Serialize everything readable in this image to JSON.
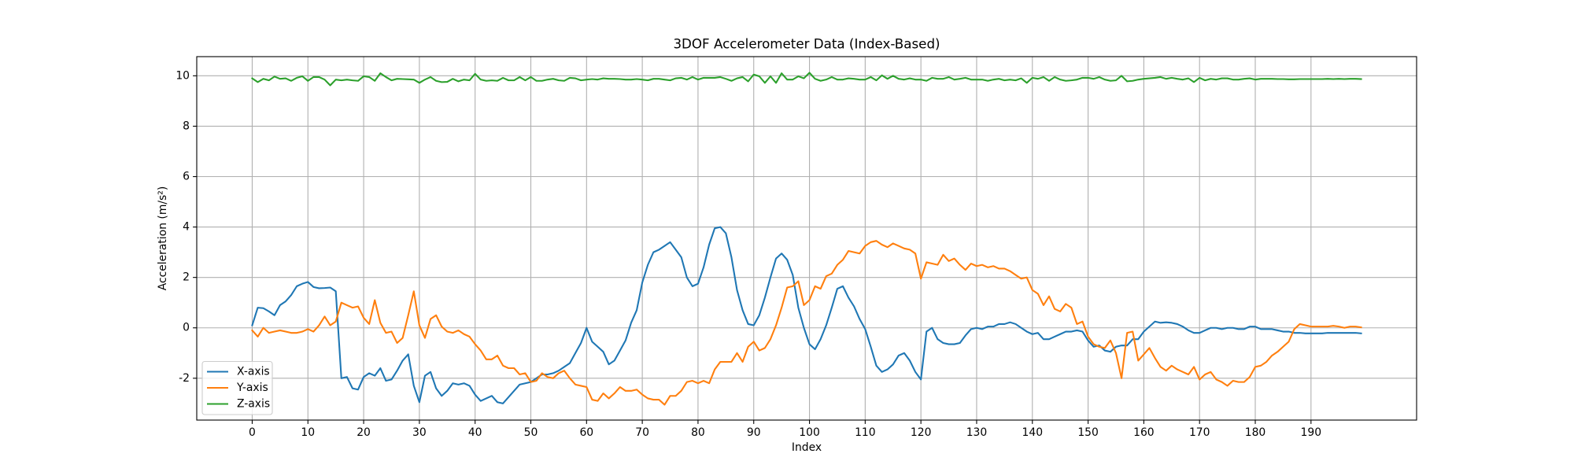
{
  "chart_data": {
    "type": "line",
    "title": "3DOF Accelerometer Data (Index-Based)",
    "x_label": "Index",
    "y_label": "Acceleration (m/s²)",
    "x": [
      0,
      1,
      2,
      3,
      4,
      5,
      6,
      7,
      8,
      9,
      10,
      11,
      12,
      13,
      14,
      15,
      16,
      17,
      18,
      19,
      20,
      21,
      22,
      23,
      24,
      25,
      26,
      27,
      28,
      29,
      30,
      31,
      32,
      33,
      34,
      35,
      36,
      37,
      38,
      39,
      40,
      41,
      42,
      43,
      44,
      45,
      46,
      47,
      48,
      49,
      50,
      51,
      52,
      53,
      54,
      55,
      56,
      57,
      58,
      59,
      60,
      61,
      62,
      63,
      64,
      65,
      66,
      67,
      68,
      69,
      70,
      71,
      72,
      73,
      74,
      75,
      76,
      77,
      78,
      79,
      80,
      81,
      82,
      83,
      84,
      85,
      86,
      87,
      88,
      89,
      90,
      91,
      92,
      93,
      94,
      95,
      96,
      97,
      98,
      99,
      100,
      101,
      102,
      103,
      104,
      105,
      106,
      107,
      108,
      109,
      110,
      111,
      112,
      113,
      114,
      115,
      116,
      117,
      118,
      119,
      120,
      121,
      122,
      123,
      124,
      125,
      126,
      127,
      128,
      129,
      130,
      131,
      132,
      133,
      134,
      135,
      136,
      137,
      138,
      139,
      140,
      141,
      142,
      143,
      144,
      145,
      146,
      147,
      148,
      149,
      150,
      151,
      152,
      153,
      154,
      155,
      156,
      157,
      158,
      159,
      160,
      161,
      162,
      163,
      164,
      165,
      166,
      167,
      168,
      169,
      170,
      171,
      172,
      173,
      174,
      175,
      176,
      177,
      178,
      179,
      180,
      181,
      182,
      183,
      184,
      185,
      186,
      187,
      188,
      189,
      190,
      191,
      192,
      193,
      194,
      195,
      196,
      197,
      198,
      199
    ],
    "series": [
      {
        "name": "X-axis",
        "color": "#1f77b4",
        "values": [
          0.1,
          0.8,
          0.78,
          0.65,
          0.5,
          0.9,
          1.05,
          1.3,
          1.65,
          1.75,
          1.82,
          1.62,
          1.57,
          1.58,
          1.6,
          1.45,
          -2.0,
          -1.95,
          -2.4,
          -2.45,
          -1.95,
          -1.8,
          -1.9,
          -1.6,
          -2.1,
          -2.05,
          -1.7,
          -1.3,
          -1.05,
          -2.3,
          -2.95,
          -1.9,
          -1.75,
          -2.4,
          -2.7,
          -2.5,
          -2.2,
          -2.25,
          -2.2,
          -2.3,
          -2.65,
          -2.9,
          -2.8,
          -2.7,
          -2.95,
          -3.0,
          -2.75,
          -2.5,
          -2.25,
          -2.2,
          -2.15,
          -2.0,
          -1.85,
          -1.85,
          -1.8,
          -1.7,
          -1.55,
          -1.4,
          -1.0,
          -0.6,
          0.0,
          -0.55,
          -0.75,
          -0.95,
          -1.45,
          -1.3,
          -0.9,
          -0.5,
          0.2,
          0.7,
          1.8,
          2.5,
          3.0,
          3.1,
          3.25,
          3.4,
          3.1,
          2.8,
          2.0,
          1.65,
          1.75,
          2.4,
          3.3,
          3.95,
          4.0,
          3.75,
          2.8,
          1.5,
          0.7,
          0.15,
          0.1,
          0.5,
          1.2,
          2.0,
          2.75,
          2.95,
          2.7,
          2.1,
          0.8,
          0.0,
          -0.65,
          -0.85,
          -0.45,
          0.1,
          0.8,
          1.55,
          1.65,
          1.2,
          0.85,
          0.35,
          -0.05,
          -0.75,
          -1.5,
          -1.75,
          -1.65,
          -1.45,
          -1.1,
          -1.0,
          -1.3,
          -1.75,
          -2.05,
          -0.15,
          0.0,
          -0.45,
          -0.6,
          -0.65,
          -0.65,
          -0.6,
          -0.3,
          -0.05,
          0.0,
          -0.05,
          0.05,
          0.05,
          0.15,
          0.15,
          0.22,
          0.15,
          0.0,
          -0.15,
          -0.25,
          -0.2,
          -0.45,
          -0.45,
          -0.35,
          -0.25,
          -0.15,
          -0.15,
          -0.1,
          -0.15,
          -0.5,
          -0.75,
          -0.7,
          -0.9,
          -0.95,
          -0.75,
          -0.7,
          -0.7,
          -0.45,
          -0.45,
          -0.15,
          0.05,
          0.25,
          0.2,
          0.22,
          0.2,
          0.15,
          0.05,
          -0.1,
          -0.2,
          -0.2,
          -0.1,
          0.0,
          0.0,
          -0.05,
          0.0,
          0.0,
          -0.05,
          -0.05,
          0.05,
          0.05,
          -0.05,
          -0.05,
          -0.05,
          -0.1,
          -0.15,
          -0.15,
          -0.2,
          -0.2,
          -0.22,
          -0.22,
          -0.22,
          -0.22,
          -0.2,
          -0.2,
          -0.2,
          -0.2,
          -0.2,
          -0.2,
          -0.22
        ]
      },
      {
        "name": "Y-axis",
        "color": "#ff7f0e",
        "values": [
          -0.1,
          -0.35,
          0.0,
          -0.2,
          -0.15,
          -0.1,
          -0.15,
          -0.2,
          -0.2,
          -0.15,
          -0.05,
          -0.15,
          0.1,
          0.45,
          0.1,
          0.25,
          1.0,
          0.9,
          0.8,
          0.85,
          0.4,
          0.15,
          1.1,
          0.2,
          -0.2,
          -0.15,
          -0.6,
          -0.4,
          0.5,
          1.45,
          0.1,
          -0.4,
          0.35,
          0.5,
          0.05,
          -0.15,
          -0.2,
          -0.1,
          -0.25,
          -0.35,
          -0.65,
          -0.9,
          -1.25,
          -1.25,
          -1.1,
          -1.5,
          -1.6,
          -1.6,
          -1.85,
          -1.8,
          -2.15,
          -2.1,
          -1.8,
          -1.95,
          -2.0,
          -1.8,
          -1.7,
          -2.0,
          -2.25,
          -2.3,
          -2.35,
          -2.85,
          -2.9,
          -2.6,
          -2.8,
          -2.6,
          -2.35,
          -2.5,
          -2.5,
          -2.45,
          -2.65,
          -2.8,
          -2.85,
          -2.85,
          -3.05,
          -2.7,
          -2.7,
          -2.5,
          -2.15,
          -2.1,
          -2.2,
          -2.1,
          -2.2,
          -1.65,
          -1.35,
          -1.35,
          -1.35,
          -1.0,
          -1.35,
          -0.75,
          -0.55,
          -0.9,
          -0.8,
          -0.45,
          0.1,
          0.8,
          1.6,
          1.65,
          1.85,
          0.9,
          1.1,
          1.65,
          1.55,
          2.05,
          2.15,
          2.5,
          2.7,
          3.05,
          3.0,
          2.95,
          3.25,
          3.4,
          3.45,
          3.3,
          3.2,
          3.35,
          3.25,
          3.15,
          3.1,
          2.95,
          1.95,
          2.6,
          2.55,
          2.5,
          2.9,
          2.65,
          2.75,
          2.5,
          2.3,
          2.55,
          2.45,
          2.5,
          2.4,
          2.45,
          2.35,
          2.35,
          2.25,
          2.1,
          1.95,
          2.0,
          1.5,
          1.35,
          0.9,
          1.25,
          0.75,
          0.65,
          0.95,
          0.8,
          0.15,
          0.25,
          -0.35,
          -0.65,
          -0.75,
          -0.8,
          -0.5,
          -1.0,
          -2.0,
          -0.2,
          -0.15,
          -1.3,
          -1.05,
          -0.8,
          -1.2,
          -1.55,
          -1.7,
          -1.5,
          -1.65,
          -1.75,
          -1.85,
          -1.55,
          -2.05,
          -1.85,
          -1.75,
          -2.05,
          -2.15,
          -2.3,
          -2.1,
          -2.15,
          -2.15,
          -1.95,
          -1.55,
          -1.5,
          -1.35,
          -1.1,
          -0.95,
          -0.75,
          -0.55,
          -0.05,
          0.15,
          0.1,
          0.05,
          0.05,
          0.05,
          0.05,
          0.08,
          0.05,
          0.0,
          0.05,
          0.05,
          0.02
        ]
      },
      {
        "name": "Z-axis",
        "color": "#2ca02c",
        "values": [
          9.9,
          9.75,
          9.88,
          9.82,
          9.97,
          9.88,
          9.9,
          9.8,
          9.92,
          9.98,
          9.8,
          9.95,
          9.95,
          9.85,
          9.62,
          9.85,
          9.82,
          9.85,
          9.82,
          9.8,
          9.98,
          9.95,
          9.8,
          10.1,
          9.95,
          9.82,
          9.88,
          9.87,
          9.86,
          9.85,
          9.72,
          9.85,
          9.95,
          9.8,
          9.75,
          9.76,
          9.88,
          9.78,
          9.85,
          9.82,
          10.08,
          9.85,
          9.8,
          9.82,
          9.8,
          9.92,
          9.82,
          9.82,
          9.95,
          9.82,
          9.95,
          9.8,
          9.8,
          9.85,
          9.88,
          9.82,
          9.8,
          9.92,
          9.9,
          9.82,
          9.85,
          9.87,
          9.85,
          9.9,
          9.88,
          9.88,
          9.87,
          9.85,
          9.85,
          9.87,
          9.85,
          9.82,
          9.88,
          9.88,
          9.85,
          9.82,
          9.9,
          9.92,
          9.85,
          9.95,
          9.85,
          9.92,
          9.92,
          9.92,
          9.95,
          9.88,
          9.8,
          9.9,
          9.95,
          9.78,
          10.05,
          9.98,
          9.72,
          9.98,
          9.72,
          10.1,
          9.85,
          9.85,
          9.98,
          9.9,
          10.12,
          9.88,
          9.8,
          9.85,
          9.95,
          9.85,
          9.85,
          9.9,
          9.88,
          9.85,
          9.85,
          9.95,
          9.82,
          10.02,
          9.88,
          10.0,
          9.88,
          9.85,
          9.9,
          9.85,
          9.85,
          9.8,
          9.92,
          9.88,
          9.88,
          9.95,
          9.85,
          9.88,
          9.92,
          9.85,
          9.85,
          9.85,
          9.8,
          9.85,
          9.88,
          9.82,
          9.85,
          9.82,
          9.9,
          9.72,
          9.92,
          9.88,
          9.95,
          9.8,
          9.95,
          9.85,
          9.8,
          9.82,
          9.85,
          9.92,
          9.92,
          9.88,
          9.95,
          9.85,
          9.8,
          9.82,
          10.0,
          9.78,
          9.8,
          9.85,
          9.88,
          9.9,
          9.92,
          9.95,
          9.88,
          9.92,
          9.88,
          9.85,
          9.9,
          9.75,
          9.92,
          9.82,
          9.88,
          9.85,
          9.9,
          9.9,
          9.85,
          9.85,
          9.88,
          9.9,
          9.85,
          9.88,
          9.88,
          9.88,
          9.87,
          9.87,
          9.86,
          9.86,
          9.87,
          9.87,
          9.87,
          9.87,
          9.87,
          9.88,
          9.87,
          9.88,
          9.87,
          9.88,
          9.88,
          9.87
        ]
      }
    ],
    "xlim": [
      -9.95,
      208.95
    ],
    "ylim": [
      -3.66,
      10.76
    ],
    "xticks": [
      0,
      10,
      20,
      30,
      40,
      50,
      60,
      70,
      80,
      90,
      100,
      110,
      120,
      130,
      140,
      150,
      160,
      170,
      180,
      190
    ],
    "yticks": [
      -2,
      0,
      2,
      4,
      6,
      8,
      10
    ],
    "grid": true,
    "legend": "lower left"
  }
}
